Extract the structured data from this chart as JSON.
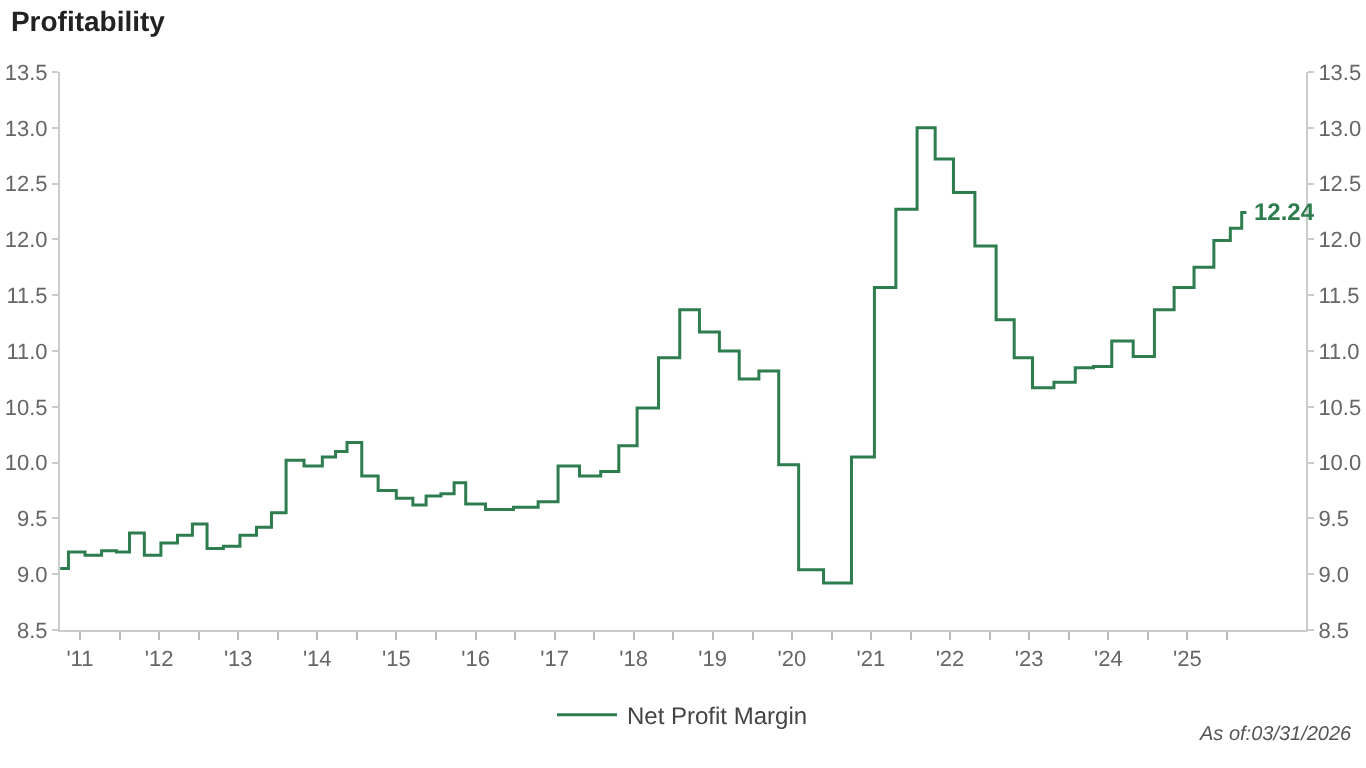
{
  "chart_data": {
    "type": "step",
    "title": "Profitability",
    "x": [
      "2011-04-01",
      "2011-06-16",
      "2011-09-01",
      "2011-11-16",
      "2012-01-16",
      "2012-03-16",
      "2012-06-01",
      "2012-08-16",
      "2012-11-01",
      "2013-01-01",
      "2013-03-16",
      "2013-06-01",
      "2013-08-16",
      "2013-11-01",
      "2014-01-01",
      "2014-03-16",
      "2014-06-16",
      "2014-09-01",
      "2014-10-16",
      "2014-12-16",
      "2015-03-01",
      "2015-05-16",
      "2015-08-16",
      "2015-10-16",
      "2015-12-16",
      "2016-03-01",
      "2016-04-16",
      "2016-06-16",
      "2016-10-16",
      "2017-03-01",
      "2017-06-01",
      "2017-09-01",
      "2017-12-16",
      "2018-03-16",
      "2018-06-01",
      "2018-09-01",
      "2018-12-16",
      "2019-03-16",
      "2019-06-16",
      "2019-09-16",
      "2019-12-16",
      "2020-03-16",
      "2020-06-16",
      "2020-09-16",
      "2021-02-01",
      "2021-06-01",
      "2021-09-01",
      "2021-12-16",
      "2022-03-16",
      "2022-06-01",
      "2022-09-01",
      "2022-12-16",
      "2023-03-16",
      "2023-06-01",
      "2023-09-01",
      "2023-12-16",
      "2024-03-16",
      "2024-06-01",
      "2024-09-01",
      "2024-12-16",
      "2025-03-16",
      "2025-06-16",
      "2025-09-16",
      "2025-12-16",
      "2026-02-15",
      "2026-03-31"
    ],
    "series": [
      {
        "name": "Net Profit Margin",
        "color": "#2e7d4f",
        "values": [
          9.05,
          9.2,
          9.17,
          9.21,
          9.2,
          9.37,
          9.17,
          9.28,
          9.35,
          9.45,
          9.23,
          9.25,
          9.35,
          9.42,
          9.55,
          10.02,
          9.97,
          10.05,
          10.1,
          10.18,
          9.88,
          9.75,
          9.68,
          9.62,
          9.7,
          9.72,
          9.82,
          9.63,
          9.58,
          9.6,
          9.65,
          9.97,
          9.88,
          9.92,
          10.15,
          10.49,
          10.94,
          11.37,
          11.17,
          11.0,
          10.75,
          10.82,
          9.98,
          9.04,
          8.92,
          10.05,
          11.57,
          12.27,
          13.0,
          12.72,
          12.42,
          11.94,
          11.28,
          10.94,
          10.67,
          10.72,
          10.85,
          10.86,
          11.09,
          10.95,
          11.37,
          11.57,
          11.75,
          11.99,
          12.1,
          12.24
        ],
        "value_labels": [
          null,
          null,
          null,
          null,
          null,
          null,
          null,
          null,
          null,
          null,
          null,
          null,
          null,
          null,
          null,
          null,
          null,
          null,
          null,
          null,
          null,
          null,
          null,
          null,
          null,
          null,
          null,
          null,
          null,
          null,
          null,
          null,
          null,
          null,
          null,
          null,
          null,
          null,
          null,
          null,
          null,
          null,
          null,
          null,
          null,
          null,
          null,
          null,
          null,
          null,
          null,
          null,
          null,
          null,
          null,
          null,
          null,
          null,
          null,
          null,
          null,
          null,
          null,
          null,
          null,
          "12.24"
        ]
      }
    ],
    "xlim": [
      "2011-03-31",
      "2026-12-31"
    ],
    "xticks": [
      {
        "value": "2011-07-01",
        "label": "'11"
      },
      {
        "value": "2012-01-01",
        "label": null
      },
      {
        "value": "2012-07-01",
        "label": "'12"
      },
      {
        "value": "2013-01-01",
        "label": null
      },
      {
        "value": "2013-07-01",
        "label": "'13"
      },
      {
        "value": "2014-01-01",
        "label": null
      },
      {
        "value": "2014-07-01",
        "label": "'14"
      },
      {
        "value": "2015-01-01",
        "label": null
      },
      {
        "value": "2015-07-01",
        "label": "'15"
      },
      {
        "value": "2016-01-01",
        "label": null
      },
      {
        "value": "2016-07-01",
        "label": "'16"
      },
      {
        "value": "2017-01-01",
        "label": null
      },
      {
        "value": "2017-07-01",
        "label": "'17"
      },
      {
        "value": "2018-01-01",
        "label": null
      },
      {
        "value": "2018-07-01",
        "label": "'18"
      },
      {
        "value": "2019-01-01",
        "label": null
      },
      {
        "value": "2019-07-01",
        "label": "'19"
      },
      {
        "value": "2020-01-01",
        "label": null
      },
      {
        "value": "2020-07-01",
        "label": "'20"
      },
      {
        "value": "2021-01-01",
        "label": null
      },
      {
        "value": "2021-07-01",
        "label": "'21"
      },
      {
        "value": "2022-01-01",
        "label": null
      },
      {
        "value": "2022-07-01",
        "label": "'22"
      },
      {
        "value": "2023-01-01",
        "label": null
      },
      {
        "value": "2023-07-01",
        "label": "'23"
      },
      {
        "value": "2024-01-01",
        "label": null
      },
      {
        "value": "2024-07-01",
        "label": "'24"
      },
      {
        "value": "2025-01-01",
        "label": null
      },
      {
        "value": "2025-07-01",
        "label": "'25"
      },
      {
        "value": "2026-01-01",
        "label": null
      }
    ],
    "ylim": [
      8.5,
      13.5
    ],
    "yticks": [
      {
        "value": 8.5,
        "label": "8.5"
      },
      {
        "value": 9,
        "label": "9.0"
      },
      {
        "value": 9.5,
        "label": "9.5"
      },
      {
        "value": 10,
        "label": "10.0"
      },
      {
        "value": 10.5,
        "label": "10.5"
      },
      {
        "value": 11,
        "label": "11.0"
      },
      {
        "value": 11.5,
        "label": "11.5"
      },
      {
        "value": 12,
        "label": "12.0"
      },
      {
        "value": 12.5,
        "label": "12.5"
      },
      {
        "value": 13,
        "label": "13.0"
      },
      {
        "value": 13.5,
        "label": "13.5"
      }
    ],
    "y2lim": [
      8.5,
      13.5
    ],
    "y2ticks": [
      {
        "value": 8.5,
        "label": "8.5"
      },
      {
        "value": 9,
        "label": "9.0"
      },
      {
        "value": 9.5,
        "label": "9.5"
      },
      {
        "value": 10,
        "label": "10.0"
      },
      {
        "value": 10.5,
        "label": "10.5"
      },
      {
        "value": 11,
        "label": "11.0"
      },
      {
        "value": 11.5,
        "label": "11.5"
      },
      {
        "value": 12,
        "label": "12.0"
      },
      {
        "value": 12.5,
        "label": "12.5"
      },
      {
        "value": 13,
        "label": "13.0"
      },
      {
        "value": 13.5,
        "label": "13.5"
      }
    ],
    "grid": false,
    "legend": "bottom",
    "marker": "none",
    "line_style": "solid",
    "annotations": [
      "As of:03/31/2026"
    ]
  }
}
